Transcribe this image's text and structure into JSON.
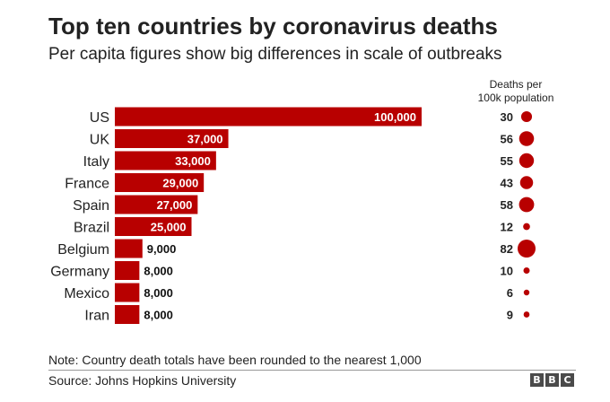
{
  "title": "Top ten countries by coronavirus deaths",
  "subtitle": "Per capita figures show big differences in scale of outbreaks",
  "footnote": "Note: Country death totals have been rounded to the nearest 1,000",
  "source": "Source: Johns Hopkins University",
  "brand": {
    "letters": [
      "B",
      "B",
      "C"
    ],
    "color": "#4a4a4a"
  },
  "colors": {
    "bar": "#b80000",
    "dot": "#b80000",
    "label_inside": "#ffffff",
    "label_outside": "#111111"
  },
  "chart_data": {
    "type": "bar",
    "orientation": "horizontal",
    "title": "Top ten countries by coronavirus deaths",
    "subtitle": "Per capita figures show big differences in scale of outbreaks",
    "categories": [
      "US",
      "UK",
      "Italy",
      "France",
      "Spain",
      "Brazil",
      "Belgium",
      "Germany",
      "Mexico",
      "Iran"
    ],
    "series": [
      {
        "name": "Deaths",
        "values": [
          100000,
          37000,
          33000,
          29000,
          27000,
          25000,
          9000,
          8000,
          8000,
          8000
        ],
        "labels": [
          "100,000",
          "37,000",
          "33,000",
          "29,000",
          "27,000",
          "25,000",
          "9,000",
          "8,000",
          "8,000",
          "8,000"
        ]
      },
      {
        "name": "Deaths per 100k population",
        "header_lines": [
          "Deaths per",
          "100k population"
        ],
        "values": [
          30,
          56,
          55,
          43,
          58,
          12,
          82,
          10,
          6,
          9
        ]
      }
    ],
    "xlim": [
      0,
      100000
    ],
    "grid": false,
    "legend": "none"
  }
}
